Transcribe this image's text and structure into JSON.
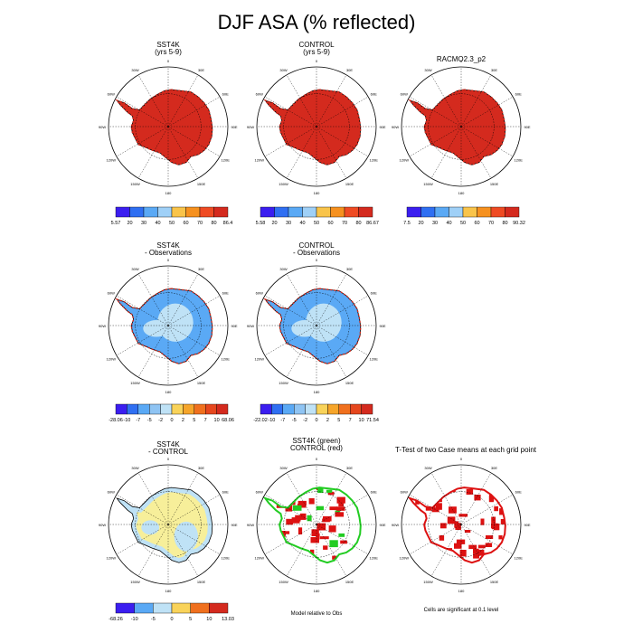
{
  "title": "DJF ASA (% reflected)",
  "colors": {
    "absolute": [
      "#3b1ef0",
      "#2f6ff2",
      "#5aa9f5",
      "#9fd0f7",
      "#f7ef9a",
      "#f9c44a",
      "#f6911f",
      "#ef4b23",
      "#d42a1e"
    ],
    "difference": [
      "#3b1ef0",
      "#2f6ff2",
      "#5aa9f5",
      "#8fc4f3",
      "#bfe2f6",
      "#f7ef9a",
      "#f9d35a",
      "#f6a52a",
      "#f0701e",
      "#e6471e",
      "#d42a1e"
    ],
    "ice_red": "#d42a1e",
    "ice_blue": "#5aa9f5",
    "ice_lightblue": "#bfe2f6",
    "ice_yellow": "#f7ef9a",
    "sig_red": "#dd1111",
    "sig_green": "#22cc22"
  },
  "compass_labels": [
    "0",
    "30E",
    "60E",
    "90E",
    "120E",
    "150E",
    "180",
    "150W",
    "120W",
    "90W",
    "60W",
    "30W"
  ],
  "chart_data": [
    {
      "type": "heatmap",
      "panel": "sst4k",
      "title": [
        "SST4K",
        "(yrs 5-9)"
      ],
      "fill": "ice_red",
      "colorbar": {
        "scheme": "absolute",
        "labels": [
          "5.57",
          "20",
          "30",
          "40",
          "50",
          "60",
          "70",
          "80",
          "86.4"
        ]
      }
    },
    {
      "type": "heatmap",
      "panel": "control",
      "title": [
        "CONTROL",
        "(yrs 5-9)"
      ],
      "fill": "ice_red",
      "colorbar": {
        "scheme": "absolute",
        "labels": [
          "5.58",
          "20",
          "30",
          "40",
          "50",
          "60",
          "70",
          "80",
          "86.67"
        ]
      }
    },
    {
      "type": "heatmap",
      "panel": "racmo",
      "title": [
        "RACMO2.3_p2"
      ],
      "fill": "ice_red",
      "colorbar": {
        "scheme": "absolute",
        "labels": [
          "7.5",
          "20",
          "30",
          "40",
          "50",
          "60",
          "70",
          "80",
          "90.32"
        ]
      }
    },
    {
      "type": "heatmap",
      "panel": "sst4k-obs",
      "title": [
        "SST4K",
        "- Observations"
      ],
      "fill": "ice_blue",
      "colorbar": {
        "scheme": "difference",
        "labels": [
          "-28.06",
          "-10",
          "-7",
          "-5",
          "-2",
          "0",
          "2",
          "5",
          "7",
          "10",
          "68.06"
        ]
      }
    },
    {
      "type": "heatmap",
      "panel": "control-obs",
      "title": [
        "CONTROL",
        "- Observations"
      ],
      "fill": "ice_blue",
      "colorbar": {
        "scheme": "difference",
        "labels": [
          "-22.02",
          "-10",
          "-7",
          "-5",
          "-2",
          "0",
          "2",
          "5",
          "7",
          "10",
          "71.54"
        ]
      }
    },
    {
      "type": "heatmap",
      "panel": "sst4k-control",
      "title": [
        "SST4K",
        "- CONTROL"
      ],
      "fill": "ice_yellow",
      "colorbar": {
        "scheme": "difference",
        "labels": [
          "-68.26",
          "-10",
          "-5",
          "0",
          "5",
          "10",
          "13.03"
        ]
      }
    },
    {
      "type": "heatmap",
      "panel": "relative",
      "title": [
        "SST4K (green)",
        "CONTROL (red)"
      ],
      "fill": "none",
      "note": "Model relative to Obs"
    },
    {
      "type": "heatmap",
      "panel": "ttest",
      "title": [
        "T-Test of two Case means at each grid point"
      ],
      "fill": "none",
      "note": "Cells are significant at 0.1 level"
    }
  ]
}
